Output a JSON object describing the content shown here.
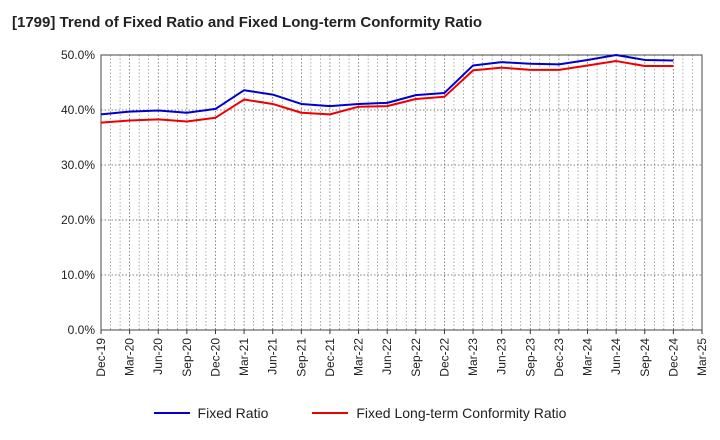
{
  "chart_data": {
    "type": "line",
    "title": "[1799]  Trend of Fixed Ratio and Fixed Long-term Conformity Ratio",
    "xlabel": "",
    "ylabel": "",
    "ylim": [
      0,
      50
    ],
    "y_ticks": [
      "0.0%",
      "10.0%",
      "20.0%",
      "30.0%",
      "40.0%",
      "50.0%"
    ],
    "y_tick_values": [
      0,
      10,
      20,
      30,
      40,
      50
    ],
    "x_tick_labels": [
      "Dec-19",
      "Mar-20",
      "Jun-20",
      "Sep-20",
      "Dec-20",
      "Mar-21",
      "Jun-21",
      "Sep-21",
      "Dec-21",
      "Mar-22",
      "Jun-22",
      "Sep-22",
      "Dec-22",
      "Mar-23",
      "Jun-23",
      "Sep-23",
      "Dec-23",
      "Mar-24",
      "Jun-24",
      "Sep-24",
      "Dec-24",
      "Mar-25"
    ],
    "x": [
      "Dec-19",
      "Mar-20",
      "Jun-20",
      "Sep-20",
      "Dec-20",
      "Mar-21",
      "Jun-21",
      "Sep-21",
      "Dec-21",
      "Mar-22",
      "Jun-22",
      "Sep-22",
      "Dec-22",
      "Mar-23",
      "Jun-23",
      "Sep-23",
      "Dec-23",
      "Mar-24",
      "Jun-24",
      "Sep-24",
      "Dec-24"
    ],
    "grid": true,
    "legend_position": "bottom",
    "series": [
      {
        "name": "Fixed Ratio",
        "color": "#0000cc",
        "values": [
          39.2,
          39.7,
          39.9,
          39.5,
          40.2,
          43.6,
          42.8,
          41.1,
          40.7,
          41.1,
          41.3,
          42.7,
          43.1,
          48.1,
          48.7,
          48.4,
          48.3,
          49.1,
          50.0,
          49.1,
          49.0
        ]
      },
      {
        "name": "Fixed Long-term Conformity Ratio",
        "color": "#ee0000",
        "values": [
          37.7,
          38.1,
          38.3,
          37.9,
          38.6,
          41.9,
          41.1,
          39.5,
          39.2,
          40.6,
          40.7,
          42.0,
          42.4,
          47.2,
          47.7,
          47.3,
          47.3,
          48.1,
          48.9,
          48.0,
          48.0
        ]
      }
    ]
  }
}
